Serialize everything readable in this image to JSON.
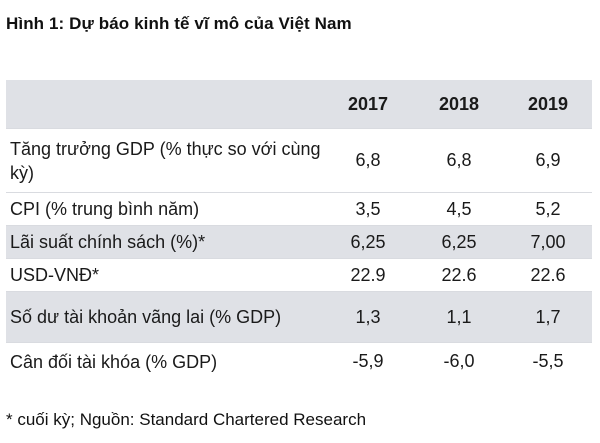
{
  "title": "Hình 1: Dự báo kinh tế vĩ mô của Việt Nam",
  "table": {
    "columns": [
      "2017",
      "2018",
      "2019"
    ],
    "rows": [
      {
        "label": "Tăng trưởng GDP (% thực so với cùng kỳ)",
        "values": [
          "6,8",
          "6,8",
          "6,9"
        ]
      },
      {
        "label": "CPI (% trung bình năm)",
        "values": [
          "3,5",
          "4,5",
          "5,2"
        ]
      },
      {
        "label": "Lãi suất chính sách (%)*",
        "values": [
          "6,25",
          "6,25",
          "7,00"
        ]
      },
      {
        "label": "USD-VNĐ*",
        "values": [
          "22.9",
          "22.6",
          "22.6"
        ]
      },
      {
        "label": "Số dư tài khoản vãng lai (% GDP)",
        "values": [
          "1,3",
          "1,1",
          "1,7"
        ]
      },
      {
        "label": "Cân đối tài khóa (% GDP)",
        "values": [
          "-5,9",
          "-6,0",
          "-5,5"
        ]
      }
    ]
  },
  "footnote": "* cuối kỳ; Nguồn: Standard Chartered Research",
  "colors": {
    "shaded_row": "#dfe1e6",
    "divider": "#d9dbe0"
  }
}
